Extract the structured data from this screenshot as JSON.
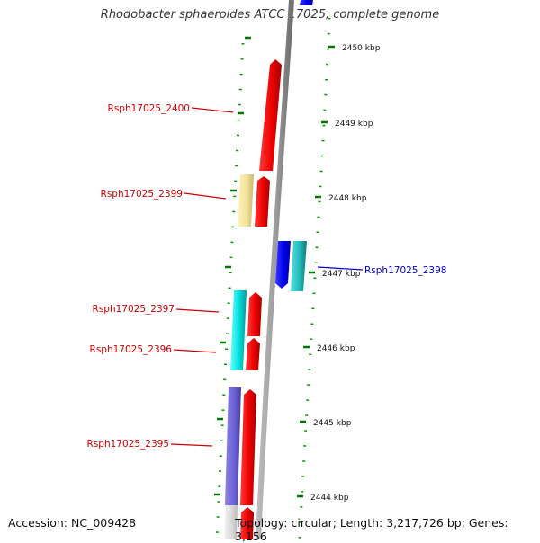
{
  "title": "Rhodobacter sphaeroides ATCC 17025, complete genome",
  "accession": "Accession: NC_009428",
  "summary": "Topology: circular; Length: 3,217,726 bp; Genes: 3,156",
  "colors": {
    "backbone": "#888888",
    "forward_gene": "#ff0000",
    "reverse_gene": "#0000ee",
    "tick": "#007700",
    "label_forward": "#cc0000",
    "label_reverse": "#0000cc"
  },
  "ticks": [
    {
      "label": "2450 kbp"
    },
    {
      "label": "2449 kbp"
    },
    {
      "label": "2448 kbp"
    },
    {
      "label": "2447 kbp"
    },
    {
      "label": "2446 kbp"
    },
    {
      "label": "2445 kbp"
    },
    {
      "label": "2444 kbp"
    }
  ],
  "gene_labels": [
    {
      "name": "Rsph17025_2400",
      "strand": "forward"
    },
    {
      "name": "Rsph17025_2399",
      "strand": "forward"
    },
    {
      "name": "Rsph17025_2398",
      "strand": "reverse"
    },
    {
      "name": "Rsph17025_2397",
      "strand": "forward"
    },
    {
      "name": "Rsph17025_2396",
      "strand": "forward"
    },
    {
      "name": "Rsph17025_2395",
      "strand": "forward"
    }
  ]
}
